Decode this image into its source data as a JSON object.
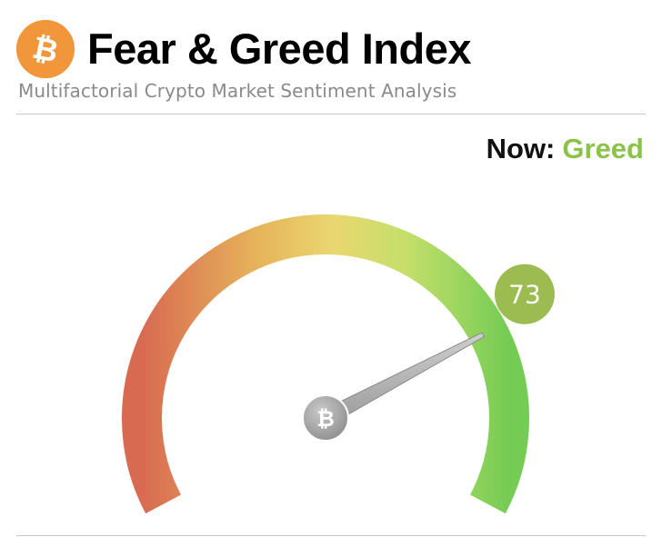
{
  "header": {
    "title": "Fear & Greed Index",
    "subtitle": "Multifactorial Crypto Market Sentiment Analysis",
    "logo_icon": "bitcoin-icon"
  },
  "status": {
    "label": "Now:",
    "value": "Greed",
    "color": "#8bc34a"
  },
  "gauge": {
    "value": 73,
    "value_text": "73",
    "min": 0,
    "max": 100,
    "badge_color": "#9cbc52",
    "hub_icon": "bitcoin-icon"
  },
  "colors": {
    "logo": "#f1963b",
    "fear": "#d9694f",
    "neutral": "#e9d56b",
    "greed": "#7fcf58"
  }
}
